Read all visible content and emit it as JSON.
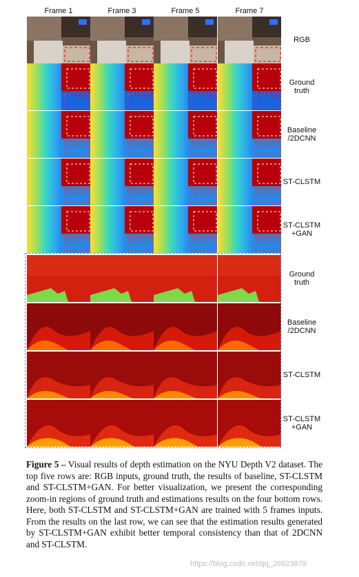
{
  "figure": {
    "column_headers": [
      "Frame 1",
      "Frame 3",
      "Frame 5",
      "Frame 7"
    ],
    "top_row_labels": [
      [
        "RGB"
      ],
      [
        "Ground",
        "truth"
      ],
      [
        "Baseline",
        "/2DCNN"
      ],
      [
        "ST-CLSTM"
      ],
      [
        "ST-CLSTM",
        "+GAN"
      ]
    ],
    "zoom_row_labels": [
      [
        "Ground",
        "truth"
      ],
      [
        "Baseline",
        "/2DCNN"
      ],
      [
        "ST-CLSTM"
      ],
      [
        "ST-CLSTM",
        "+GAN"
      ]
    ]
  },
  "caption": {
    "label": "Figure 5 –",
    "text": " Visual results of depth estimation on the NYU Depth V2 dataset. The top five rows are: RGB inputs, ground truth, the results of baseline, ST-CLSTM and ST-CLSTM+GAN. For better visualization, we present the corresponding zoom-in regions of ground truth and estimations results on the four bottom rows. Here, both ST-CLSTM and ST-CLSTM+GAN are trained with 5 frames inputs. From the results on the last row, we can see that the estimation results generated by ST-CLSTM+GAN exhibit better temporal consistency than that of 2DCNN and ST-CLSTM."
  },
  "watermark": "https://blog.csdn.net/qq_26623879",
  "colors": {
    "depth_far": "#8b0000",
    "depth_mid": "#ffcc00",
    "depth_near": "#1e90ff",
    "zoom_box": "#ff3030",
    "zoom_box_alt": "#ffffff",
    "frame_dash": "#8080cc"
  }
}
